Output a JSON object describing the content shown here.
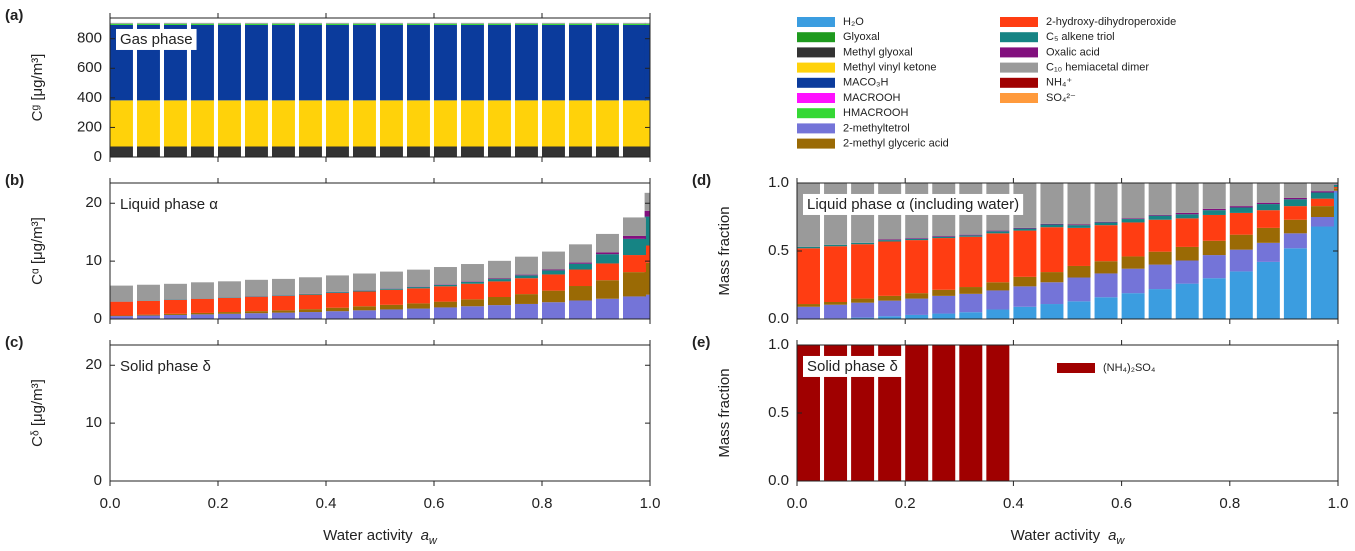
{
  "legend": [
    {
      "name": "H₂O",
      "color": "#3b9de0"
    },
    {
      "name": "Glyoxal",
      "color": "#1e9a1e"
    },
    {
      "name": "Methyl glyoxal",
      "color": "#333333"
    },
    {
      "name": "Methyl vinyl ketone",
      "color": "#ffd20a"
    },
    {
      "name": "MACO₃H",
      "color": "#0b3b9c"
    },
    {
      "name": "MACROOH",
      "color": "#ff10ff"
    },
    {
      "name": "HMACROOH",
      "color": "#35d835"
    },
    {
      "name": "2-methyltetrol",
      "color": "#7474d8"
    },
    {
      "name": "2-methyl glyceric acid",
      "color": "#9a6a05"
    },
    {
      "name": "2-hydroxy-dihydroperoxide",
      "color": "#ff3d12"
    },
    {
      "name": "C₅ alkene triol",
      "color": "#168484"
    },
    {
      "name": "Oxalic acid",
      "color": "#82107e"
    },
    {
      "name": "C₁₀ hemiacetal dimer",
      "color": "#9a9a9a"
    },
    {
      "name": "NH₄⁺",
      "color": "#a00000"
    },
    {
      "name": "SO₄²⁻",
      "color": "#ff9a3c"
    }
  ],
  "chart_data": [
    {
      "type": "bar",
      "panel_label": "(a)",
      "title": "Gas phase",
      "ylabel": "Cᵍ  [μg/m³]",
      "x": [
        0,
        0.05,
        0.1,
        0.15,
        0.2,
        0.25,
        0.3,
        0.35,
        0.4,
        0.45,
        0.5,
        0.55,
        0.6,
        0.65,
        0.7,
        0.75,
        0.8,
        0.85,
        0.9,
        0.95,
        0.99
      ],
      "xlim": [
        0,
        1
      ],
      "xticks": [
        0,
        0.2,
        0.4,
        0.6,
        0.8,
        1
      ],
      "ylim": [
        0,
        940
      ],
      "yticks": [
        0,
        200,
        400,
        600,
        800
      ],
      "series": [
        {
          "name": "Glyoxal",
          "values": [
            3,
            3,
            3,
            3,
            3,
            3,
            3,
            3,
            3,
            3,
            3,
            3,
            3,
            3,
            3,
            3,
            3,
            3,
            3,
            3,
            3
          ]
        },
        {
          "name": "Methyl glyoxal",
          "values": [
            68,
            68,
            68,
            68,
            68,
            68,
            68,
            68,
            68,
            68,
            68,
            68,
            68,
            68,
            68,
            68,
            68,
            68,
            68,
            68,
            68
          ]
        },
        {
          "name": "Methyl vinyl ketone",
          "values": [
            312,
            312,
            312,
            312,
            312,
            312,
            312,
            312,
            312,
            312,
            312,
            312,
            312,
            312,
            312,
            312,
            312,
            312,
            312,
            312,
            312
          ]
        },
        {
          "name": "MACO₃H",
          "values": [
            510,
            510,
            510,
            510,
            510,
            510,
            510,
            510,
            510,
            510,
            510,
            510,
            510,
            510,
            510,
            510,
            510,
            510,
            510,
            510,
            510
          ]
        },
        {
          "name": "HMACROOH",
          "values": [
            8,
            8,
            8,
            8,
            8,
            8,
            8,
            8,
            8,
            8,
            8,
            8,
            8,
            8,
            8,
            8,
            8,
            8,
            8,
            8,
            8
          ]
        },
        {
          "name": "C₁₀ hemiacetal dimer",
          "values": [
            6,
            6,
            6,
            6,
            6,
            6,
            6,
            6,
            6,
            6,
            6,
            6,
            6,
            6,
            6,
            6,
            6,
            6,
            6,
            6,
            6
          ]
        }
      ]
    },
    {
      "type": "bar",
      "panel_label": "(b)",
      "title": "Liquid phase α",
      "ylabel": "Cᵅ  [μg/m³]",
      "x": [
        0,
        0.05,
        0.1,
        0.15,
        0.2,
        0.25,
        0.3,
        0.35,
        0.4,
        0.45,
        0.5,
        0.55,
        0.6,
        0.65,
        0.7,
        0.75,
        0.8,
        0.85,
        0.9,
        0.95,
        0.99
      ],
      "xlim": [
        0,
        1
      ],
      "xticks": [
        0,
        0.2,
        0.4,
        0.6,
        0.8,
        1
      ],
      "ylim": [
        0,
        23.5
      ],
      "yticks": [
        0,
        10,
        20
      ],
      "series": [
        {
          "name": "2-methyltetrol",
          "values": [
            0.5,
            0.6,
            0.7,
            0.8,
            0.9,
            1.0,
            1.1,
            1.2,
            1.35,
            1.5,
            1.65,
            1.8,
            2.0,
            2.2,
            2.4,
            2.6,
            2.9,
            3.2,
            3.5,
            3.9,
            4.2
          ]
        },
        {
          "name": "2-methyl glyceric acid",
          "values": [
            0.1,
            0.15,
            0.2,
            0.25,
            0.3,
            0.35,
            0.4,
            0.5,
            0.6,
            0.7,
            0.8,
            0.9,
            1.0,
            1.2,
            1.4,
            1.7,
            2.0,
            2.5,
            3.2,
            4.2,
            5.5
          ]
        },
        {
          "name": "2-hydroxy-dihydroperoxide",
          "values": [
            2.4,
            2.4,
            2.4,
            2.45,
            2.45,
            2.5,
            2.5,
            2.5,
            2.55,
            2.55,
            2.6,
            2.6,
            2.65,
            2.7,
            2.7,
            2.75,
            2.8,
            2.85,
            2.9,
            2.95,
            3.0
          ]
        },
        {
          "name": "C₅ alkene triol",
          "values": [
            0.05,
            0.05,
            0.06,
            0.07,
            0.08,
            0.09,
            0.1,
            0.12,
            0.14,
            0.16,
            0.19,
            0.22,
            0.26,
            0.32,
            0.4,
            0.5,
            0.7,
            1.0,
            1.6,
            2.8,
            5.0
          ]
        },
        {
          "name": "Oxalic acid",
          "values": [
            0.02,
            0.02,
            0.02,
            0.02,
            0.03,
            0.03,
            0.03,
            0.04,
            0.04,
            0.05,
            0.05,
            0.06,
            0.07,
            0.08,
            0.1,
            0.12,
            0.15,
            0.2,
            0.3,
            0.5,
            1.0
          ]
        },
        {
          "name": "C₁₀ hemiacetal dimer",
          "values": [
            2.7,
            2.7,
            2.7,
            2.75,
            2.75,
            2.8,
            2.8,
            2.85,
            2.85,
            2.9,
            2.9,
            2.95,
            3.0,
            3.0,
            3.05,
            3.1,
            3.1,
            3.15,
            3.2,
            3.2,
            3.1
          ]
        }
      ]
    },
    {
      "type": "bar",
      "panel_label": "(c)",
      "title": "Solid phase δ",
      "ylabel": "Cᵟ  [μg/m³]",
      "x": [],
      "xlim": [
        0,
        1
      ],
      "xticks": [
        {
          "value": 0,
          "label": "0.0"
        },
        {
          "value": 0.2,
          "label": "0.2"
        },
        {
          "value": 0.4,
          "label": "0.4"
        },
        {
          "value": 0.6,
          "label": "0.6"
        },
        {
          "value": 0.8,
          "label": "0.8"
        },
        {
          "value": 1,
          "label": "1.0"
        }
      ],
      "xlabel": "Water activity",
      "xlabel_symbol": "a",
      "xlabel_symbol_sub": "w",
      "ylim": [
        0,
        23.5
      ],
      "yticks": [
        0,
        10,
        20
      ],
      "series": []
    },
    {
      "type": "bar",
      "panel_label": "(d)",
      "title": "Liquid phase α (including water)",
      "ylabel": "Mass fraction",
      "x": [
        0,
        0.05,
        0.1,
        0.15,
        0.2,
        0.25,
        0.3,
        0.35,
        0.4,
        0.45,
        0.5,
        0.55,
        0.6,
        0.65,
        0.7,
        0.75,
        0.8,
        0.85,
        0.9,
        0.95,
        0.99
      ],
      "xlim": [
        0,
        1
      ],
      "xticks": [
        0,
        0.2,
        0.4,
        0.6,
        0.8,
        1
      ],
      "ylim": [
        0,
        1
      ],
      "yticks": [
        {
          "value": 0,
          "label": "0.0"
        },
        {
          "value": 0.5,
          "label": "0.5"
        },
        {
          "value": 1,
          "label": "1.0"
        }
      ],
      "series": [
        {
          "name": "H₂O",
          "values": [
            0,
            0.005,
            0.01,
            0.02,
            0.03,
            0.04,
            0.05,
            0.07,
            0.09,
            0.11,
            0.13,
            0.16,
            0.19,
            0.22,
            0.26,
            0.3,
            0.35,
            0.42,
            0.52,
            0.68,
            0.93
          ]
        },
        {
          "name": "2-methyltetrol",
          "values": [
            0.09,
            0.1,
            0.11,
            0.115,
            0.12,
            0.13,
            0.135,
            0.14,
            0.15,
            0.16,
            0.175,
            0.175,
            0.18,
            0.18,
            0.17,
            0.17,
            0.16,
            0.14,
            0.11,
            0.07,
            0.013
          ]
        },
        {
          "name": "2-methyl glyceric acid",
          "values": [
            0.02,
            0.02,
            0.03,
            0.035,
            0.04,
            0.045,
            0.05,
            0.06,
            0.07,
            0.075,
            0.085,
            0.09,
            0.09,
            0.095,
            0.1,
            0.105,
            0.11,
            0.11,
            0.1,
            0.08,
            0.018
          ]
        },
        {
          "name": "2-hydroxy-dihydroperoxide",
          "values": [
            0.41,
            0.41,
            0.4,
            0.4,
            0.39,
            0.38,
            0.37,
            0.36,
            0.34,
            0.33,
            0.28,
            0.265,
            0.25,
            0.235,
            0.21,
            0.19,
            0.16,
            0.13,
            0.1,
            0.055,
            0.01
          ]
        },
        {
          "name": "C₅ alkene triol",
          "values": [
            0.01,
            0.01,
            0.01,
            0.01,
            0.01,
            0.01,
            0.01,
            0.015,
            0.015,
            0.02,
            0.02,
            0.02,
            0.025,
            0.03,
            0.03,
            0.035,
            0.04,
            0.045,
            0.05,
            0.045,
            0.016
          ]
        },
        {
          "name": "Oxalic acid",
          "values": [
            0,
            0,
            0,
            0.005,
            0.005,
            0.005,
            0.005,
            0.005,
            0.005,
            0.005,
            0.005,
            0.005,
            0.005,
            0.005,
            0.01,
            0.01,
            0.01,
            0.01,
            0.01,
            0.01,
            0.003
          ]
        },
        {
          "name": "C₁₀ hemiacetal dimer",
          "values": [
            0.47,
            0.455,
            0.44,
            0.415,
            0.405,
            0.39,
            0.38,
            0.35,
            0.33,
            0.3,
            0.305,
            0.285,
            0.26,
            0.235,
            0.22,
            0.19,
            0.17,
            0.145,
            0.11,
            0.06,
            0.01
          ]
        }
      ]
    },
    {
      "type": "bar",
      "panel_label": "(e)",
      "title": "Solid phase δ",
      "ylabel": "Mass fraction",
      "x": [
        0,
        0.05,
        0.1,
        0.15,
        0.2,
        0.25,
        0.3,
        0.35
      ],
      "xlim": [
        0,
        1
      ],
      "xticks": [
        {
          "value": 0,
          "label": "0.0"
        },
        {
          "value": 0.2,
          "label": "0.2"
        },
        {
          "value": 0.4,
          "label": "0.4"
        },
        {
          "value": 0.6,
          "label": "0.6"
        },
        {
          "value": 0.8,
          "label": "0.8"
        },
        {
          "value": 1,
          "label": "1.0"
        }
      ],
      "xlabel": "Water activity",
      "xlabel_symbol": "a",
      "xlabel_symbol_sub": "w",
      "ylim": [
        0,
        1
      ],
      "yticks": [
        {
          "value": 0,
          "label": "0.0"
        },
        {
          "value": 0.5,
          "label": "0.5"
        },
        {
          "value": 1,
          "label": "1.0"
        }
      ],
      "panel_legend": true,
      "series": [
        {
          "name": "(NH₄)₂SO₄",
          "color": "#a00000",
          "values": [
            1,
            1,
            1,
            1,
            1,
            1,
            1,
            1
          ]
        }
      ]
    }
  ]
}
